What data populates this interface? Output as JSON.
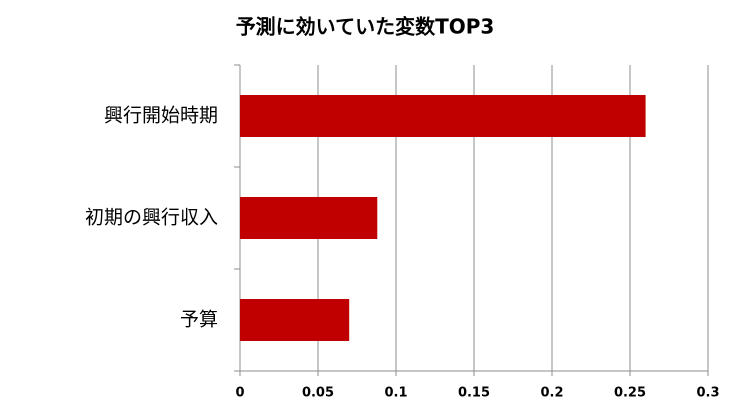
{
  "chart_data": {
    "type": "hbar",
    "title": "予測に効いていた変数TOP3",
    "categories": [
      "興行開始時期",
      "初期の興行収入",
      "予算"
    ],
    "values": [
      0.26,
      0.088,
      0.07
    ],
    "color": "#c00000",
    "xlim": [
      0,
      0.3
    ],
    "xticks": [
      0,
      0.05,
      0.1,
      0.15,
      0.2,
      0.25,
      0.3
    ],
    "grid": true
  }
}
